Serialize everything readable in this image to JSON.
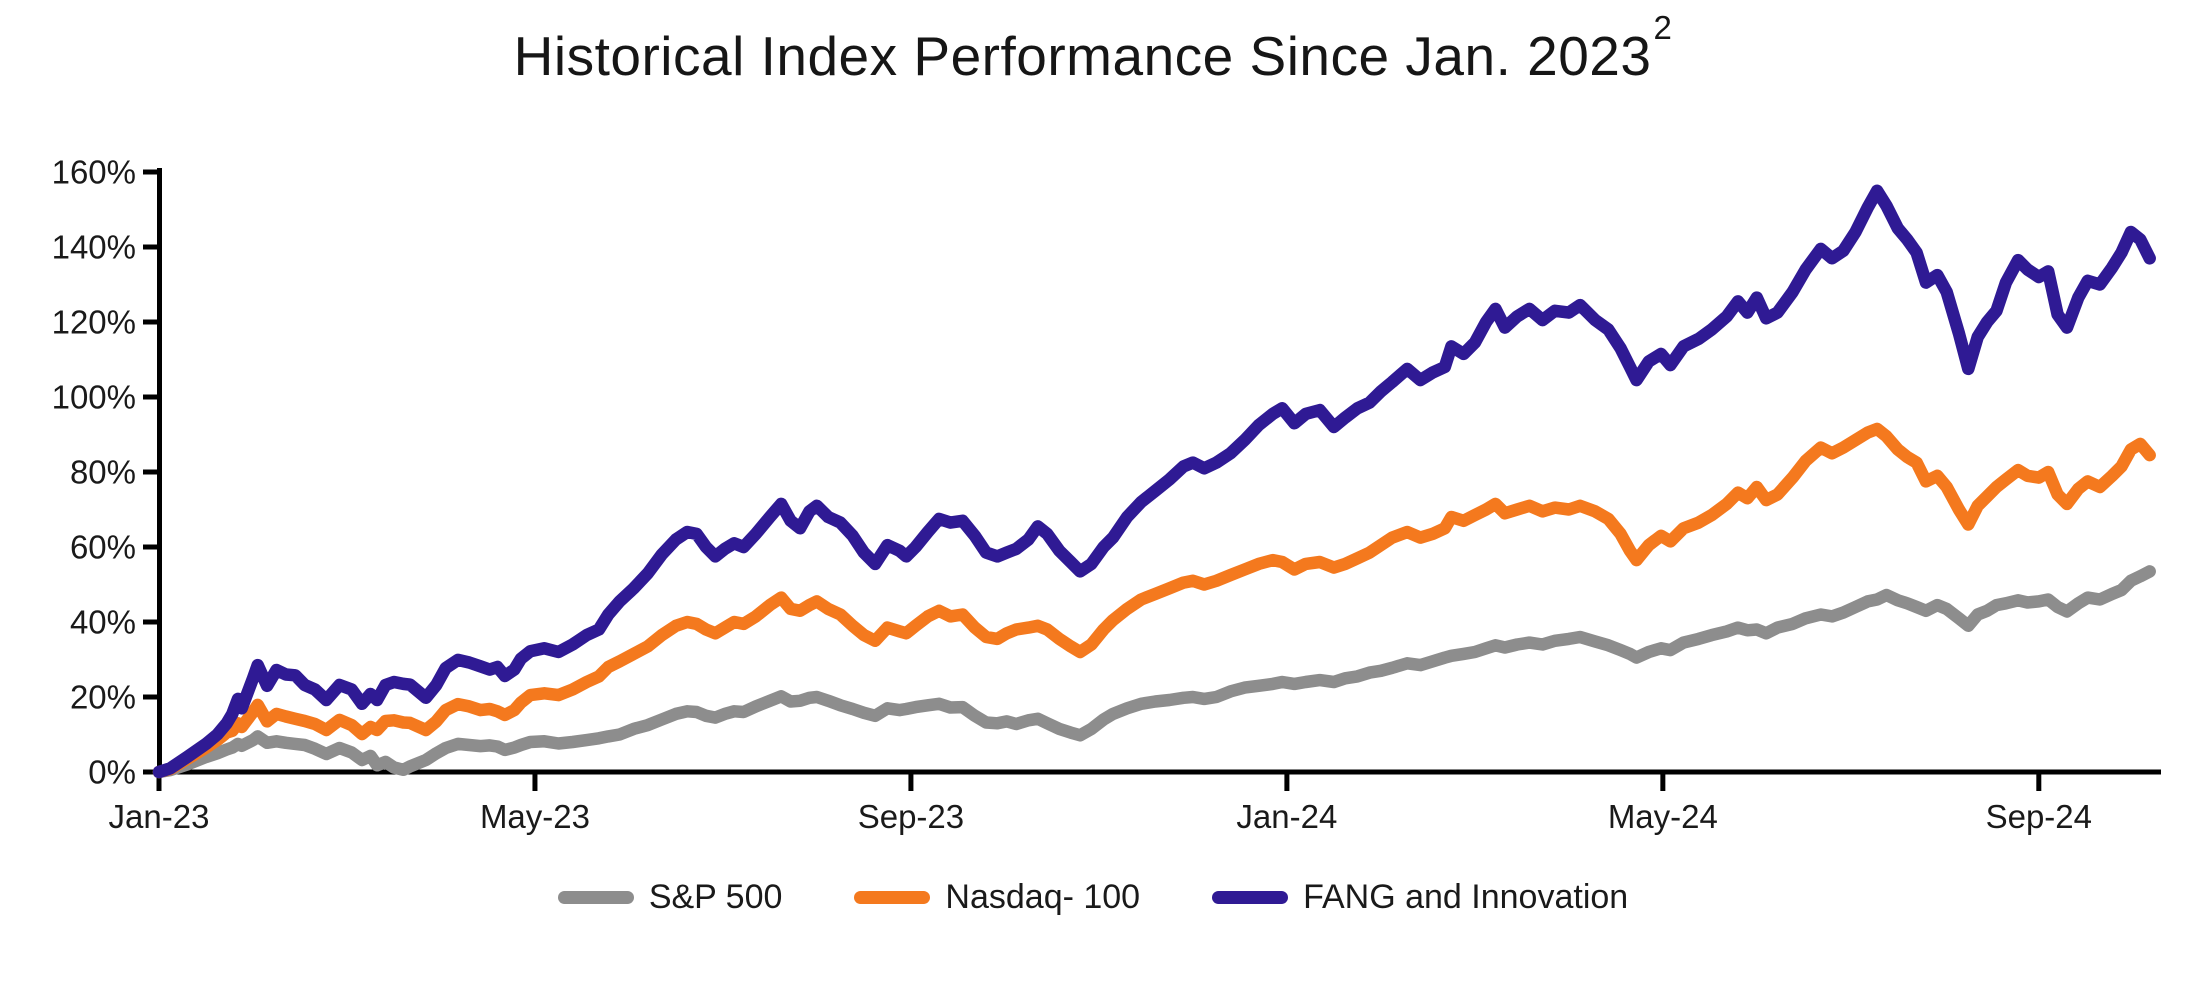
{
  "title": {
    "text": "Historical Index Performance Since Jan. 2023",
    "superscript": "2"
  },
  "chart_data": {
    "type": "line",
    "title": "Historical Index Performance Since Jan. 2023",
    "x_unit": "months since Jan-2023",
    "xlabel": "",
    "ylabel": "",
    "xlim": [
      0,
      21.3
    ],
    "ylim": [
      0,
      160
    ],
    "grid": false,
    "legend_position": "bottom",
    "x_ticks": {
      "positions": [
        0,
        4,
        8,
        12,
        16,
        20
      ],
      "labels": [
        "Jan-23",
        "May-23",
        "Sep-23",
        "Jan-24",
        "May-24",
        "Sep-24"
      ]
    },
    "y_ticks": {
      "values": [
        0,
        20,
        40,
        60,
        80,
        100,
        120,
        140,
        160
      ],
      "labels": [
        "0%",
        "20%",
        "40%",
        "60%",
        "80%",
        "100%",
        "120%",
        "140%",
        "160%"
      ]
    },
    "x": [
      0,
      0.12,
      0.3,
      0.5,
      0.62,
      0.72,
      0.78,
      0.84,
      0.88,
      1.0,
      1.05,
      1.15,
      1.25,
      1.35,
      1.45,
      1.55,
      1.66,
      1.78,
      1.92,
      2.05,
      2.16,
      2.25,
      2.32,
      2.41,
      2.5,
      2.6,
      2.67,
      2.84,
      2.95,
      3.05,
      3.18,
      3.3,
      3.42,
      3.52,
      3.6,
      3.68,
      3.78,
      3.85,
      3.95,
      4.1,
      4.25,
      4.4,
      4.55,
      4.68,
      4.78,
      4.9,
      5.05,
      5.2,
      5.35,
      5.5,
      5.62,
      5.72,
      5.82,
      5.92,
      6.02,
      6.12,
      6.22,
      6.35,
      6.5,
      6.62,
      6.72,
      6.82,
      6.92,
      7.0,
      7.12,
      7.25,
      7.38,
      7.5,
      7.62,
      7.75,
      7.88,
      7.95,
      8.05,
      8.18,
      8.3,
      8.42,
      8.55,
      8.68,
      8.8,
      8.92,
      9.02,
      9.12,
      9.25,
      9.35,
      9.45,
      9.58,
      9.7,
      9.8,
      9.92,
      10.05,
      10.15,
      10.3,
      10.45,
      10.6,
      10.75,
      10.9,
      11.0,
      11.12,
      11.25,
      11.4,
      11.55,
      11.7,
      11.85,
      11.95,
      12.08,
      12.2,
      12.35,
      12.5,
      12.62,
      12.75,
      12.88,
      13.0,
      13.12,
      13.28,
      13.42,
      13.55,
      13.68,
      13.75,
      13.88,
      14.0,
      14.12,
      14.22,
      14.32,
      14.45,
      14.58,
      14.72,
      14.85,
      15.0,
      15.12,
      15.28,
      15.42,
      15.55,
      15.65,
      15.72,
      15.85,
      15.98,
      16.08,
      16.22,
      16.38,
      16.52,
      16.68,
      16.8,
      16.9,
      17.0,
      17.1,
      17.22,
      17.38,
      17.52,
      17.68,
      17.8,
      17.92,
      18.05,
      18.18,
      18.28,
      18.38,
      18.5,
      18.6,
      18.7,
      18.8,
      18.92,
      19.02,
      19.15,
      19.25,
      19.35,
      19.45,
      19.55,
      19.65,
      19.78,
      19.88,
      20.0,
      20.1,
      20.2,
      20.3,
      20.42,
      20.52,
      20.65,
      20.78,
      20.88,
      20.98,
      21.08,
      21.18
    ],
    "series": [
      {
        "name": "S&P 500",
        "color": "#8D8D8D",
        "values": [
          0,
          0.5,
          2,
          4,
          5,
          6,
          6.5,
          7.5,
          7,
          8.5,
          9.5,
          7.8,
          8.2,
          7.8,
          7.5,
          7.2,
          6.2,
          4.8,
          6.4,
          5.2,
          3.2,
          4.3,
          1.8,
          2.7,
          1.2,
          0.6,
          1.5,
          3.2,
          5,
          6.4,
          7.5,
          7.2,
          6.9,
          7.1,
          6.8,
          5.9,
          6.5,
          7.2,
          8,
          8.2,
          7.6,
          8,
          8.5,
          9,
          9.5,
          10,
          11.5,
          12.5,
          14,
          15.5,
          16.2,
          16,
          15,
          14.5,
          15.5,
          16.2,
          16,
          17.5,
          19,
          20.2,
          18.8,
          19,
          19.8,
          20,
          19,
          17.8,
          16.8,
          15.8,
          15,
          17,
          16.5,
          16.8,
          17.3,
          17.8,
          18.2,
          17.2,
          17.3,
          15,
          13.2,
          13,
          13.5,
          12.8,
          13.8,
          14.2,
          13,
          11.5,
          10.5,
          9.8,
          11.5,
          14,
          15.5,
          17,
          18.2,
          18.8,
          19.2,
          19.8,
          20,
          19.5,
          20,
          21.5,
          22.5,
          23,
          23.5,
          24,
          23.5,
          24,
          24.5,
          24,
          25,
          25.5,
          26.5,
          27,
          27.8,
          29,
          28.5,
          29.5,
          30.5,
          31,
          31.5,
          32,
          33,
          33.8,
          33.2,
          34,
          34.5,
          34,
          35,
          35.5,
          36,
          34.8,
          33.8,
          32.5,
          31.5,
          30.5,
          32,
          33,
          32.5,
          34.5,
          35.5,
          36.5,
          37.5,
          38.5,
          37.8,
          38,
          37,
          38.5,
          39.5,
          41,
          42,
          41.5,
          42.5,
          44,
          45.5,
          46,
          47.2,
          45.8,
          45,
          44,
          43,
          44.5,
          43.5,
          41,
          39,
          42,
          43,
          44.5,
          45,
          45.8,
          45.2,
          45.5,
          46,
          44,
          42.8,
          45,
          46.5,
          46,
          47.5,
          48.5,
          51,
          52.2,
          53.5
        ]
      },
      {
        "name": "Nasdaq- 100",
        "color": "#F4791E",
        "values": [
          0,
          0.8,
          3.5,
          6.5,
          8.5,
          10.5,
          11,
          13,
          12,
          16,
          17.9,
          13.5,
          15.5,
          14.8,
          14.2,
          13.6,
          12.8,
          11.2,
          13.9,
          12.5,
          10.1,
          12,
          11.2,
          13.6,
          13.8,
          13.2,
          13.1,
          11.2,
          13.5,
          16.5,
          18.1,
          17.5,
          16.5,
          16.8,
          16.2,
          15.2,
          16.5,
          18.5,
          20.5,
          21,
          20.5,
          22,
          24,
          25.5,
          28,
          29.5,
          31.5,
          33.5,
          36.5,
          39,
          40,
          39.5,
          38,
          37,
          38.5,
          40,
          39.5,
          41.5,
          44.5,
          46.5,
          43.5,
          43,
          44.5,
          45.5,
          43.5,
          42,
          39,
          36.5,
          35,
          38.5,
          37.5,
          37,
          39,
          41.5,
          43,
          41.5,
          42,
          38.5,
          36,
          35.5,
          37,
          38,
          38.5,
          39,
          38,
          35.5,
          33.5,
          32,
          34,
          38,
          40.5,
          43.5,
          46,
          47.5,
          49,
          50.5,
          51,
          50,
          51,
          52.5,
          54,
          55.5,
          56.5,
          56,
          54,
          55.5,
          56,
          54.5,
          55.5,
          57,
          58.5,
          60.5,
          62.5,
          64,
          62.5,
          63.5,
          65,
          68,
          67,
          68.5,
          70,
          71.5,
          69,
          70,
          71,
          69.5,
          70.5,
          70,
          71,
          69.5,
          67.5,
          63.5,
          59,
          56.5,
          60.5,
          63,
          61.5,
          65,
          66.5,
          68.5,
          71.5,
          74.5,
          73,
          76,
          72.5,
          74,
          78.5,
          83,
          86.5,
          85,
          86.5,
          88.5,
          90.5,
          91.5,
          89.5,
          86,
          84,
          82.5,
          77.5,
          79,
          76,
          70,
          66,
          71,
          73.5,
          76,
          78,
          80.5,
          79,
          78.5,
          80,
          74,
          71.5,
          75.5,
          77.5,
          76,
          79,
          81.5,
          86,
          87.5,
          84.5
        ]
      },
      {
        "name": "FANG and Innovation",
        "color": "#2F1A94",
        "values": [
          0,
          1,
          4,
          7.5,
          10,
          13,
          15.5,
          19.5,
          17,
          25,
          28.5,
          23,
          27.2,
          26,
          25.8,
          23.2,
          22,
          19.2,
          23.2,
          22,
          18.2,
          20.8,
          19.2,
          23.2,
          24,
          23.5,
          23.3,
          19.8,
          23.2,
          27.7,
          29.9,
          29.2,
          28.2,
          27.3,
          28,
          25.6,
          27.3,
          30.2,
          32.2,
          33,
          32,
          34,
          36.5,
          38,
          42,
          45.5,
          49,
          53,
          58,
          62,
          64,
          63.5,
          60,
          57.5,
          59.5,
          61,
          60,
          63.5,
          68,
          71.5,
          67,
          65,
          69.5,
          71,
          68,
          66.5,
          63,
          58.5,
          55.5,
          60.5,
          59,
          57.5,
          60,
          64,
          67.5,
          66.5,
          67,
          63,
          58.5,
          57.5,
          58.5,
          59.5,
          62,
          65.5,
          63.5,
          59,
          56,
          53.5,
          55.5,
          60,
          62.5,
          68,
          72,
          75,
          78,
          81.5,
          82.5,
          81,
          82.5,
          85,
          88.5,
          92.5,
          95.5,
          97,
          93,
          95.5,
          96.5,
          92,
          94.5,
          97,
          98.5,
          101.5,
          104,
          107.5,
          104.5,
          106.5,
          108,
          113.5,
          111.5,
          114.5,
          120,
          123.5,
          118.5,
          121.5,
          123.5,
          120.5,
          123,
          122.5,
          124.5,
          120.5,
          118,
          113,
          108,
          104.5,
          109.5,
          111.5,
          108.5,
          113.5,
          115.5,
          118,
          121.5,
          125.5,
          122.5,
          126.5,
          121,
          122.5,
          128,
          134,
          139.5,
          137,
          139,
          144,
          150.5,
          155,
          151,
          145,
          142,
          138.5,
          130.5,
          132.5,
          128,
          117,
          107.5,
          116,
          120,
          123,
          130.5,
          136.5,
          134,
          132,
          133.5,
          122,
          118.5,
          126.5,
          131,
          130,
          134.5,
          138.5,
          144,
          142,
          137
        ]
      }
    ]
  }
}
